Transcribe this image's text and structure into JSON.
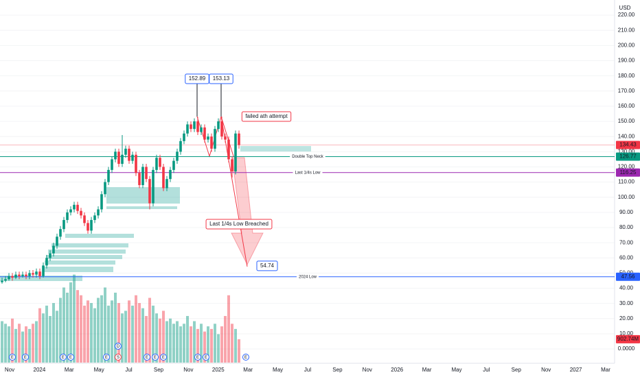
{
  "chart_data": {
    "type": "candlestick",
    "currency": "USD",
    "ylim": [
      -9,
      230
    ],
    "yticks": [
      {
        "value": 0,
        "label": "0.0000"
      },
      {
        "value": 10,
        "label": "10.00"
      },
      {
        "value": 20,
        "label": "20.00"
      },
      {
        "value": 30,
        "label": "30.00"
      },
      {
        "value": 40,
        "label": "40.00"
      },
      {
        "value": 50,
        "label": "50.00"
      },
      {
        "value": 60,
        "label": "60.00"
      },
      {
        "value": 70,
        "label": "70.00"
      },
      {
        "value": 80,
        "label": "80.00"
      },
      {
        "value": 90,
        "label": "90.00"
      },
      {
        "value": 100,
        "label": "100.00"
      },
      {
        "value": 110,
        "label": "110.00"
      },
      {
        "value": 120,
        "label": "120.00"
      },
      {
        "value": 130,
        "label": "130.00"
      },
      {
        "value": 140,
        "label": "140.00"
      },
      {
        "value": 150,
        "label": "150.00"
      },
      {
        "value": 160,
        "label": "160.00"
      },
      {
        "value": 170,
        "label": "170.00"
      },
      {
        "value": 180,
        "label": "180.00"
      },
      {
        "value": 190,
        "label": "190.00"
      },
      {
        "value": 200,
        "label": "200.00"
      },
      {
        "value": 210,
        "label": "210.00"
      },
      {
        "value": 220,
        "label": "220.00"
      }
    ],
    "x_labels": [
      "Nov",
      "2024",
      "Mar",
      "May",
      "Jul",
      "Sep",
      "Nov",
      "2025",
      "Mar",
      "May",
      "Jul",
      "Sep",
      "Nov",
      "2026",
      "Mar",
      "May",
      "Jul",
      "Sep",
      "Nov",
      "2027",
      "Mar"
    ],
    "up_color": "#089981",
    "down_color": "#f23645",
    "candles": {
      "open": [
        44,
        45,
        46,
        48,
        47,
        49,
        48,
        49,
        48,
        50,
        49,
        51,
        48,
        55,
        60,
        63,
        68,
        74,
        79,
        85,
        90,
        92,
        95,
        91,
        88,
        83,
        78,
        85,
        88,
        92,
        102,
        110,
        118,
        125,
        130,
        122,
        128,
        132,
        124,
        128,
        116,
        108,
        120,
        112,
        96,
        118,
        126,
        120,
        106,
        112,
        118,
        124,
        130,
        137,
        142,
        148,
        145,
        150,
        143,
        146,
        138,
        140,
        132,
        145,
        150,
        140,
        138,
        125,
        117,
        142
      ],
      "high": [
        47,
        48,
        50,
        50,
        51,
        51,
        51,
        51,
        52,
        52,
        53,
        53,
        57,
        62,
        65,
        70,
        76,
        81,
        87,
        92,
        94,
        97,
        97,
        93,
        90,
        85,
        87,
        90,
        94,
        104,
        112,
        120,
        127,
        132,
        132,
        141,
        134,
        134,
        130,
        130,
        118,
        122,
        122,
        114,
        120,
        128,
        128,
        122,
        114,
        120,
        126,
        132,
        139,
        144,
        150,
        150,
        152,
        152.89,
        148,
        148,
        142,
        142,
        147,
        152,
        153.13,
        142,
        140,
        127,
        144,
        144
      ],
      "low": [
        43,
        44,
        45,
        45,
        46,
        46,
        47,
        46,
        46,
        47,
        47,
        46,
        47,
        53,
        58,
        61,
        66,
        72,
        77,
        83,
        88,
        90,
        89,
        86,
        81,
        76,
        76,
        83,
        86,
        90,
        100,
        108,
        116,
        123,
        120,
        120,
        126,
        122,
        122,
        114,
        106,
        106,
        110,
        92,
        94,
        116,
        118,
        104,
        104,
        110,
        116,
        122,
        128,
        135,
        140,
        143,
        143,
        141,
        141,
        136,
        136,
        130,
        130,
        143,
        138,
        136,
        123,
        113,
        115,
        132
      ],
      "close": [
        45,
        46,
        48,
        47,
        49,
        48,
        49,
        48,
        50,
        49,
        51,
        48,
        55,
        60,
        63,
        68,
        74,
        79,
        85,
        90,
        92,
        95,
        91,
        88,
        83,
        78,
        85,
        88,
        92,
        102,
        110,
        118,
        125,
        130,
        122,
        128,
        132,
        124,
        128,
        116,
        108,
        120,
        112,
        96,
        118,
        126,
        120,
        106,
        112,
        118,
        124,
        130,
        137,
        142,
        148,
        145,
        150,
        143,
        146,
        138,
        140,
        132,
        145,
        150,
        140,
        138,
        125,
        117,
        142,
        134.43
      ]
    },
    "volume": {
      "vlim": [
        0,
        14000
      ],
      "values": [
        1600,
        1500,
        1400,
        1700,
        1300,
        1500,
        1200,
        1400,
        1300,
        1500,
        1600,
        2100,
        1900,
        2200,
        1800,
        2300,
        2000,
        2500,
        2900,
        2700,
        3100,
        3400,
        2800,
        2600,
        2200,
        2400,
        2300,
        2100,
        2500,
        2600,
        2900,
        2200,
        2400,
        2700,
        2300,
        1900,
        2000,
        2400,
        2200,
        2600,
        2300,
        2100,
        1800,
        2500,
        2200,
        1900,
        1700,
        2000,
        1600,
        1700,
        1500,
        1600,
        1400,
        1500,
        1800,
        1400,
        1600,
        1300,
        1500,
        1200,
        1400,
        1300,
        1500,
        1100,
        1400,
        1800,
        2600,
        1500,
        1300,
        902.74
      ],
      "last_label": "902.74M"
    },
    "levels": [
      {
        "name": "Double Top Neck",
        "value": 126.77,
        "color": "#089981"
      },
      {
        "name": "Last 1/4s Low",
        "value": 116.25,
        "color": "#9c27b0"
      },
      {
        "name": "2024 Low",
        "value": 47.56,
        "color": "#2962ff"
      }
    ],
    "target": 54.74,
    "annotations": [
      "failed ath attempt",
      "Last 1/4s Low Breached"
    ],
    "events": [
      "E",
      "E",
      "E",
      "E",
      "E",
      "D",
      "D",
      "S",
      "E",
      "E",
      "E",
      "E",
      "E",
      "E"
    ]
  }
}
